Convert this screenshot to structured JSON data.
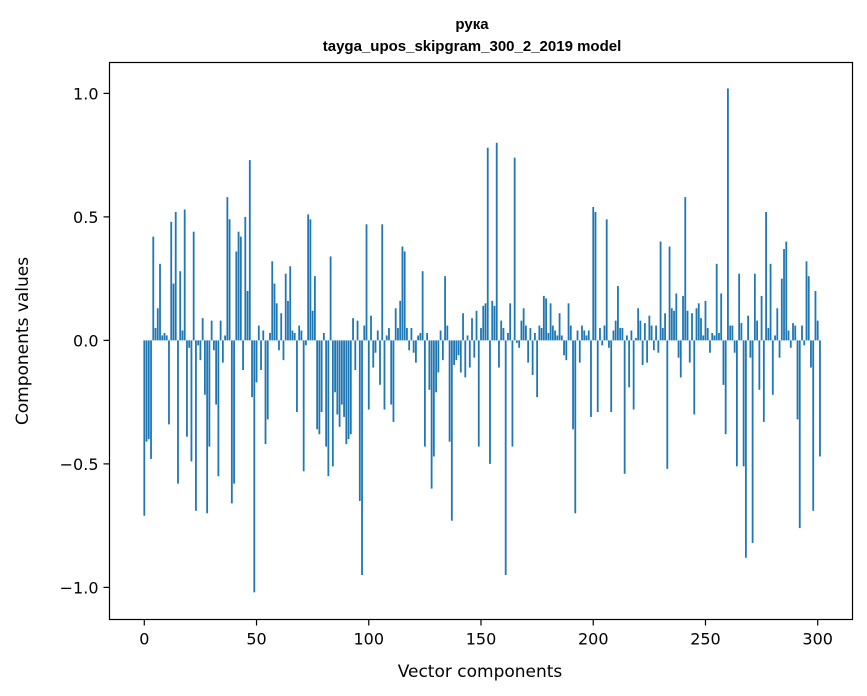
{
  "chart_data": {
    "type": "bar",
    "title": "рука",
    "subtitle": "tayga_upos_skipgram_300_2_2019 model",
    "xlabel": "Vector components",
    "ylabel": "Components values",
    "xlim": [
      -15.5,
      315.5
    ],
    "ylim": [
      -1.13,
      1.125
    ],
    "xticks": [
      0,
      50,
      100,
      150,
      200,
      250,
      300
    ],
    "xtick_labels": [
      "0",
      "50",
      "100",
      "150",
      "200",
      "250",
      "300"
    ],
    "yticks": [
      -1.0,
      -0.5,
      0.0,
      0.5,
      1.0
    ],
    "ytick_labels": [
      "−1.0",
      "−0.5",
      "0.0",
      "0.5",
      "1.0"
    ],
    "bar_color": "#1f77b4",
    "values": [
      -0.71,
      -0.41,
      -0.4,
      -0.48,
      0.42,
      0.05,
      0.13,
      0.31,
      0.02,
      0.03,
      0.02,
      -0.34,
      0.48,
      0.23,
      0.52,
      -0.58,
      0.28,
      0.04,
      0.53,
      -0.39,
      -0.03,
      -0.49,
      0.44,
      -0.69,
      -0.02,
      -0.08,
      0.09,
      -0.22,
      -0.7,
      -0.43,
      0.08,
      -0.04,
      -0.26,
      -0.55,
      0.08,
      -0.09,
      0.02,
      0.58,
      0.49,
      -0.66,
      -0.58,
      0.36,
      0.44,
      0.42,
      -0.12,
      0.5,
      0.2,
      0.73,
      -0.23,
      -1.02,
      -0.17,
      0.06,
      -0.12,
      0.04,
      -0.42,
      -0.32,
      0.03,
      0.32,
      0.23,
      0.15,
      -0.04,
      0.11,
      -0.08,
      0.27,
      0.16,
      0.3,
      0.04,
      0.03,
      -0.29,
      0.06,
      0.04,
      -0.53,
      -0.02,
      0.51,
      0.49,
      0.12,
      0.26,
      -0.36,
      -0.38,
      -0.29,
      0.03,
      -0.43,
      -0.55,
      0.34,
      -0.51,
      -0.21,
      -0.3,
      -0.35,
      -0.26,
      -0.31,
      -0.42,
      -0.4,
      -0.38,
      0.09,
      -0.12,
      0.08,
      -0.65,
      -0.95,
      0.06,
      0.47,
      -0.28,
      0.1,
      -0.11,
      -0.05,
      0.04,
      -0.18,
      0.47,
      -0.28,
      0.02,
      0.05,
      -0.26,
      -0.33,
      0.13,
      0.05,
      0.16,
      0.38,
      0.36,
      0.05,
      -0.04,
      0.05,
      -0.05,
      -0.09,
      0.02,
      0.03,
      0.28,
      -0.43,
      0.03,
      -0.2,
      -0.6,
      -0.47,
      -0.21,
      -0.13,
      0.04,
      -0.08,
      0.26,
      0.06,
      -0.41,
      -0.73,
      -0.1,
      -0.08,
      -0.06,
      -0.13,
      0.11,
      -0.15,
      0.02,
      -0.11,
      0.09,
      -0.07,
      0.12,
      -0.43,
      0.05,
      0.14,
      0.15,
      0.78,
      -0.5,
      0.16,
      0.14,
      0.8,
      -0.11,
      0.08,
      0.05,
      -0.95,
      0.03,
      0.15,
      -0.43,
      0.74,
      -0.01,
      -0.03,
      0.08,
      0.13,
      0.06,
      -0.09,
      0.05,
      -0.14,
      0.03,
      -0.23,
      0.06,
      0.05,
      0.18,
      0.17,
      0.03,
      0.15,
      0.06,
      0.04,
      0.02,
      0.11,
      0.02,
      -0.06,
      -0.08,
      0.15,
      0.06,
      -0.36,
      -0.7,
      0.04,
      -0.09,
      0.06,
      0.04,
      0.02,
      0.04,
      -0.31,
      0.54,
      0.52,
      -0.29,
      0.05,
      -0.02,
      0.06,
      0.49,
      -0.03,
      -0.29,
      0.04,
      0.08,
      0.22,
      0.05,
      0.05,
      -0.54,
      0.02,
      -0.19,
      0.04,
      -0.28,
      0.01,
      0.13,
      0.08,
      -0.1,
      0.07,
      -0.09,
      0.1,
      0.06,
      -0.04,
      0.06,
      -0.05,
      0.4,
      0.05,
      0.11,
      -0.52,
      0.38,
      0.13,
      0.12,
      0.19,
      -0.07,
      -0.15,
      0.18,
      0.58,
      0.12,
      -0.09,
      0.11,
      -0.3,
      0.13,
      0.15,
      0.09,
      0.02,
      0.16,
      0.05,
      -0.05,
      0.03,
      0.02,
      0.31,
      0.03,
      0.19,
      -0.18,
      -0.38,
      1.02,
      0.06,
      0.06,
      -0.05,
      -0.51,
      0.27,
      0.07,
      -0.51,
      -0.88,
      0.1,
      -0.07,
      -0.82,
      0.27,
      0.08,
      -0.2,
      0.18,
      -0.33,
      0.52,
      0.05,
      0.31,
      -0.22,
      0.02,
      0.13,
      -0.07,
      0.25,
      0.37,
      0.4,
      0.04,
      -0.03,
      0.07,
      0.06,
      -0.32,
      -0.76,
      0.06,
      -0.02,
      0.32,
      0.26,
      -0.11,
      -0.69,
      0.2,
      0.08,
      -0.47
    ]
  }
}
